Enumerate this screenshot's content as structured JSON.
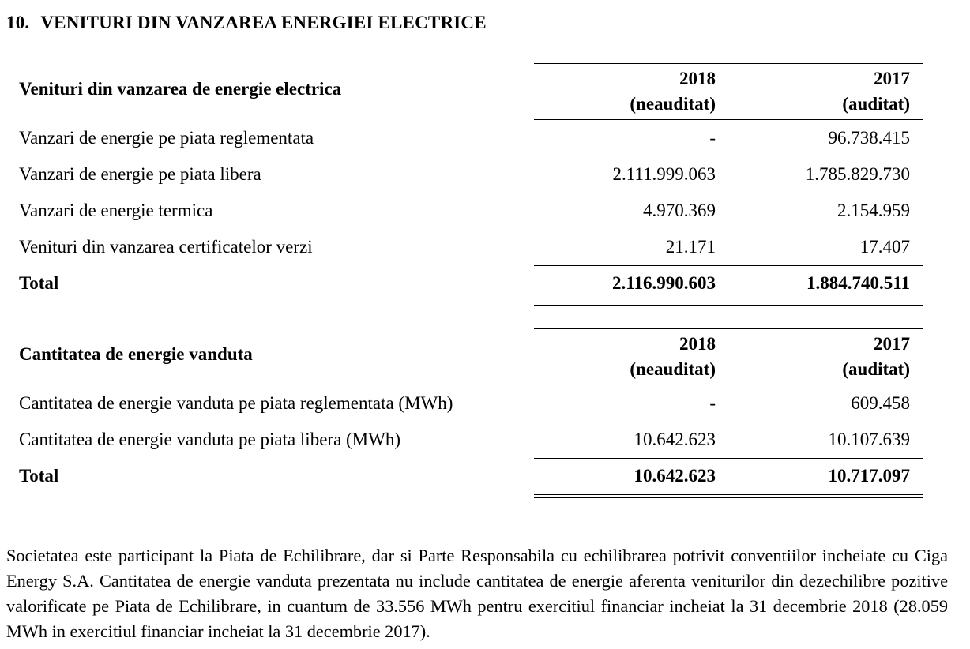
{
  "heading": {
    "number": "10.",
    "title": "VENITURI DIN VANZAREA ENERGIEI ELECTRICE"
  },
  "table_revenue": {
    "title": "Venituri din vanzarea de energie electrica",
    "col1_year": "2018",
    "col1_status": "(neauditat)",
    "col2_year": "2017",
    "col2_status": "(auditat)",
    "rows": [
      {
        "label": "Vanzari de energie pe piata reglementata",
        "v2018": "-",
        "v2017": "96.738.415"
      },
      {
        "label": "Vanzari de energie pe piata libera",
        "v2018": "2.111.999.063",
        "v2017": "1.785.829.730"
      },
      {
        "label": "Vanzari de energie termica",
        "v2018": "4.970.369",
        "v2017": "2.154.959"
      },
      {
        "label": "Venituri din vanzarea certificatelor verzi",
        "v2018": "21.171",
        "v2017": "17.407"
      }
    ],
    "total": {
      "label": "Total",
      "v2018": "2.116.990.603",
      "v2017": "1.884.740.511"
    }
  },
  "table_quantity": {
    "title": "Cantitatea de energie vanduta",
    "col1_year": "2018",
    "col1_status": "(neauditat)",
    "col2_year": "2017",
    "col2_status": "(auditat)",
    "rows": [
      {
        "label": "Cantitatea de energie vanduta pe piata reglementata (MWh)",
        "v2018": "-",
        "v2017": "609.458"
      },
      {
        "label": "Cantitatea de energie vanduta pe piata libera (MWh)",
        "v2018": "10.642.623",
        "v2017": "10.107.639"
      }
    ],
    "total": {
      "label": "Total",
      "v2018": "10.642.623",
      "v2017": "10.717.097"
    }
  },
  "note": "Societatea este participant la Piata de Echilibrare, dar si Parte Responsabila cu echilibrarea potrivit conventiilor incheiate cu Ciga Energy S.A. Cantitatea de energie vanduta prezentata nu include cantitatea de energie aferenta veniturilor din dezechilibre pozitive valorificate pe Piata de Echilibrare, in cuantum de 33.556 MWh pentru exercitiul financiar incheiat la 31 decembrie 2018 (28.059 MWh in exercitiul financiar incheiat la 31 decembrie 2017)."
}
